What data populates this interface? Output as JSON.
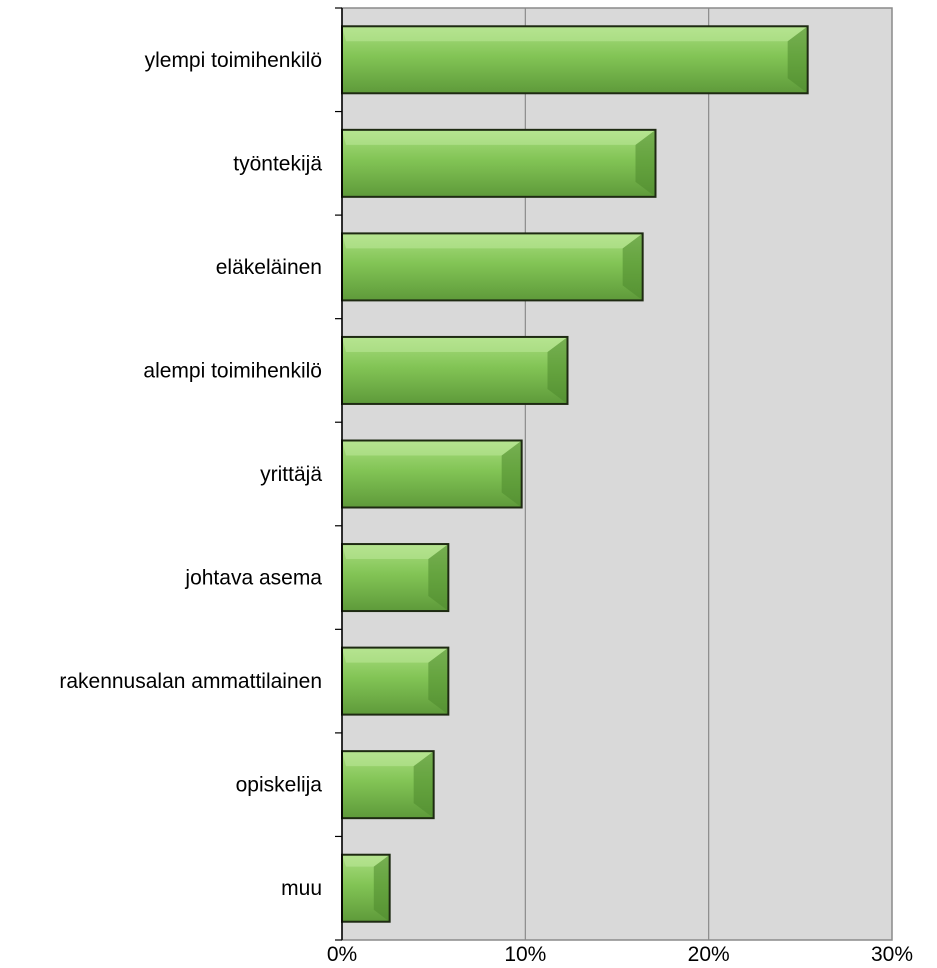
{
  "chart_data": {
    "type": "bar",
    "orientation": "horizontal",
    "categories": [
      "ylempi toimihenkilö",
      "työntekijä",
      "eläkeläinen",
      "alempi toimihenkilö",
      "yrittäjä",
      "johtava asema",
      "rakennusalan ammattilainen",
      "opiskelija",
      "muu"
    ],
    "values": [
      25.4,
      17.1,
      16.4,
      12.3,
      9.8,
      5.8,
      5.8,
      5.0,
      2.6
    ],
    "xlim": [
      0,
      30
    ],
    "x_ticks": [
      0,
      10,
      20,
      30
    ],
    "x_tick_labels": [
      "0%",
      "10%",
      "20%",
      "30%"
    ],
    "title": "",
    "xlabel": "",
    "ylabel": "",
    "grid": "vertical",
    "colors": {
      "bar_fill": "#7cbf4e",
      "bar_edge": "#1e2a12",
      "plot_background": "#d9d9d9",
      "grid": "#8a8a8a"
    }
  }
}
